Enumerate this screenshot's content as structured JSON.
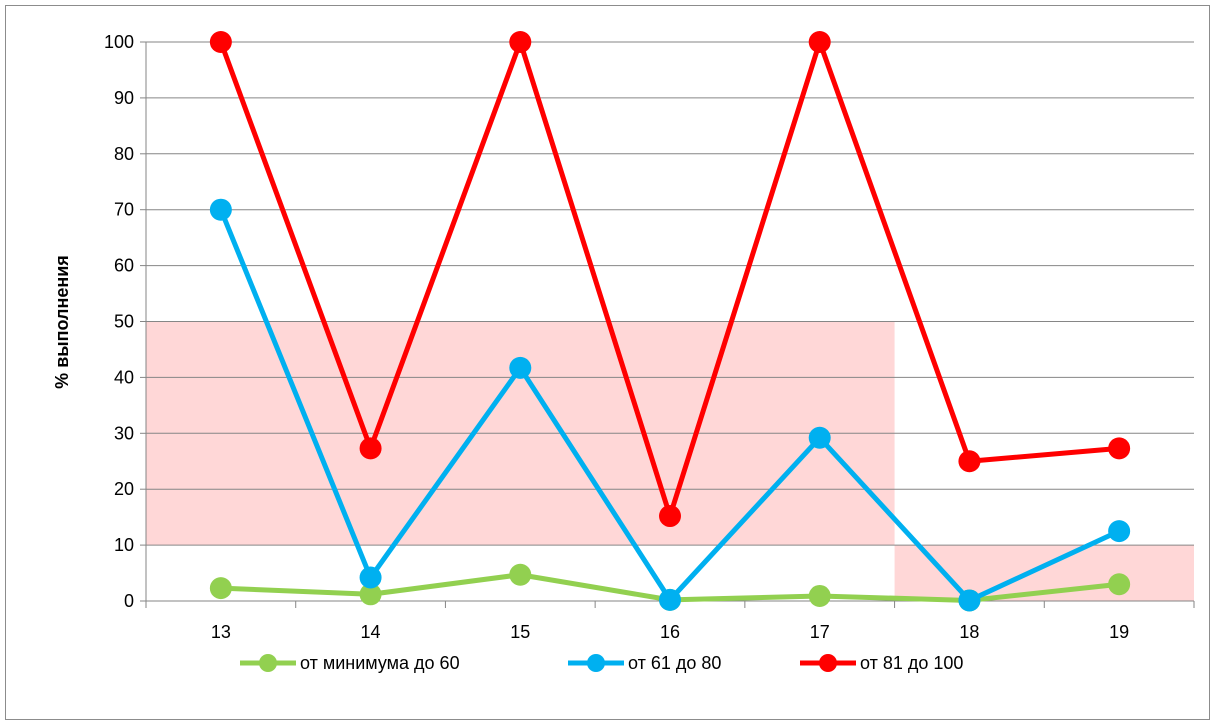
{
  "chart_data": {
    "type": "line",
    "title": "",
    "xlabel": "",
    "ylabel": "% выполнения",
    "categories": [
      "13",
      "14",
      "15",
      "16",
      "17",
      "18",
      "19"
    ],
    "ylim": [
      0,
      100
    ],
    "yticks": [
      0,
      10,
      20,
      30,
      40,
      50,
      60,
      70,
      80,
      90,
      100
    ],
    "grid": "horizontal",
    "legend": "bottom",
    "bands": [
      {
        "from_category": "13",
        "to_category": "17",
        "ymin": 10,
        "ymax": 50,
        "color": "#ffd7d7"
      },
      {
        "from_category": "18",
        "to_category": "19",
        "ymin": 0,
        "ymax": 10,
        "color": "#ffd7d7"
      }
    ],
    "series": [
      {
        "name": "от минимума до 60",
        "color": "#92d050",
        "values": [
          2.3,
          1.2,
          4.7,
          0.2,
          0.9,
          0.1,
          3.0
        ]
      },
      {
        "name": "от 61 до 80",
        "color": "#00b0f0",
        "values": [
          70,
          4.2,
          41.7,
          0.2,
          29.2,
          0.1,
          12.5
        ]
      },
      {
        "name": "от 81 до 100",
        "color": "#ff0000",
        "values": [
          100,
          27.3,
          100,
          15.2,
          100,
          25,
          27.3
        ]
      }
    ]
  }
}
